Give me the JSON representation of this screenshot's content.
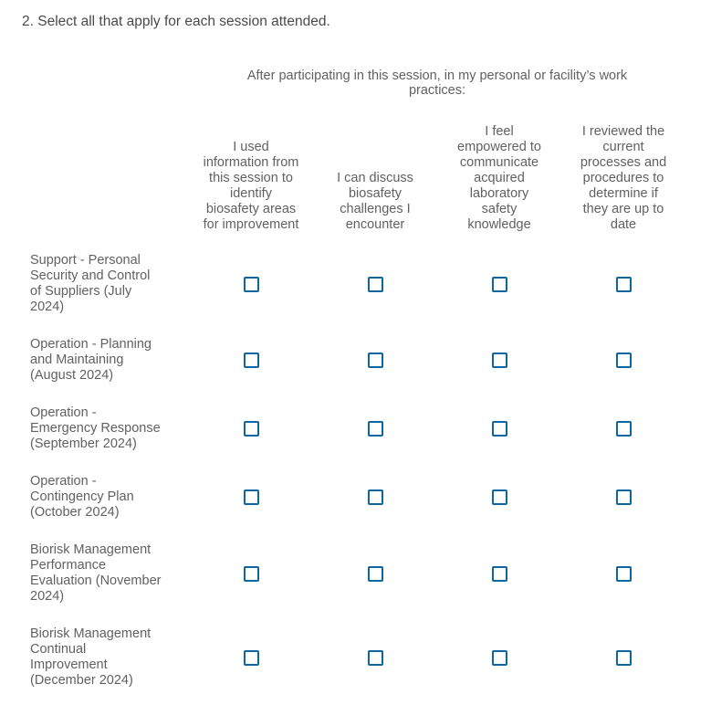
{
  "question": {
    "title": "2. Select all that apply for each session attended."
  },
  "matrix": {
    "group_header_lines": [
      "After participating in this session, in my personal or facility’s work",
      "practices:"
    ],
    "columns": [
      {
        "label_lines": [
          "I used",
          "information from",
          "this session to",
          "identify",
          "biosafety areas",
          "for improvement"
        ]
      },
      {
        "label_lines": [
          "I can discuss",
          "biosafety",
          "challenges I",
          "encounter"
        ]
      },
      {
        "label_lines": [
          "I feel",
          "empowered to",
          "communicate",
          "acquired",
          "laboratory",
          "safety",
          "knowledge"
        ]
      },
      {
        "label_lines": [
          "I reviewed the",
          "current",
          "processes and",
          "procedures to",
          "determine if",
          "they are up to",
          "date"
        ]
      }
    ],
    "rows": [
      {
        "label_lines": [
          "Support - Personal",
          "Security and Control",
          "of Suppliers (July",
          "2024)"
        ],
        "checkboxes": [
          "false",
          "false",
          "false",
          "false"
        ]
      },
      {
        "label_lines": [
          "Operation - Planning",
          "and Maintaining",
          "(August 2024)"
        ],
        "checkboxes": [
          "false",
          "false",
          "false",
          "false"
        ]
      },
      {
        "label_lines": [
          "Operation -",
          "Emergency Response",
          "(September 2024)"
        ],
        "checkboxes": [
          "false",
          "false",
          "false",
          "false"
        ]
      },
      {
        "label_lines": [
          "Operation -",
          "Contingency Plan",
          "(October 2024)"
        ],
        "checkboxes": [
          "false",
          "false",
          "false",
          "false"
        ]
      },
      {
        "label_lines": [
          "Biorisk Management",
          "Performance",
          "Evaluation (November",
          "2024)"
        ],
        "checkboxes": [
          "false",
          "false",
          "false",
          "false"
        ]
      },
      {
        "label_lines": [
          "Biorisk Management",
          "Continual",
          "Improvement",
          "(December 2024)"
        ],
        "checkboxes": [
          "false",
          "false",
          "false",
          "false"
        ]
      }
    ]
  },
  "colors": {
    "checkbox_border": "#0b66a1",
    "title_text": "#4a4a4a",
    "body_text": "#616161",
    "background": "#ffffff"
  }
}
